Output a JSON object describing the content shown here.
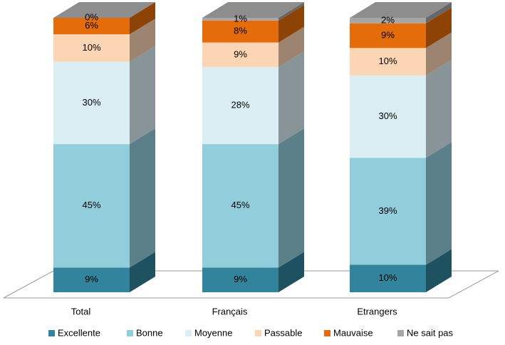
{
  "chart_data": {
    "type": "bar3d_stacked",
    "categories": [
      "Total",
      "Français",
      "Etrangers"
    ],
    "series": [
      {
        "name": "Excellente",
        "color": "#31849b",
        "values": [
          9,
          9,
          10
        ],
        "value_labels": [
          "9%",
          "9%",
          "10%"
        ]
      },
      {
        "name": "Bonne",
        "color": "#92cddc",
        "values": [
          45,
          45,
          39
        ],
        "value_labels": [
          "45%",
          "45%",
          "39%"
        ]
      },
      {
        "name": "Moyenne",
        "color": "#dbeef4",
        "values": [
          30,
          28,
          30
        ],
        "value_labels": [
          "30%",
          "28%",
          "30%"
        ]
      },
      {
        "name": "Passable",
        "color": "#fcd5b5",
        "values": [
          10,
          9,
          10
        ],
        "value_labels": [
          "10%",
          "9%",
          "10%"
        ]
      },
      {
        "name": "Mauvaise",
        "color": "#e46c0a",
        "values": [
          6,
          8,
          9
        ],
        "value_labels": [
          "6%",
          "8%",
          "9%"
        ]
      },
      {
        "name": "Ne sait pas",
        "color": "#a6a6a6",
        "values": [
          0,
          1,
          2
        ],
        "value_labels": [
          "0%",
          "1%",
          "2%"
        ]
      }
    ],
    "legend": "bottom"
  }
}
